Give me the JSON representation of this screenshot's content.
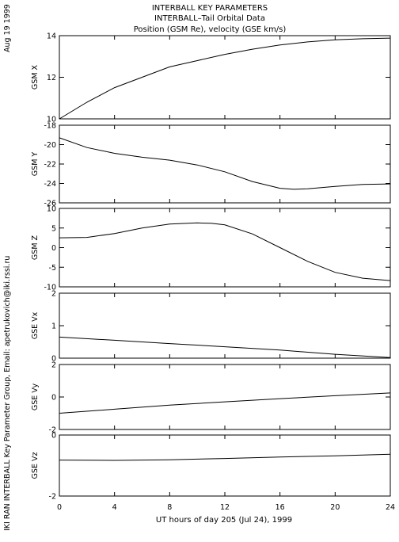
{
  "header": {
    "line1": "INTERBALL KEY PARAMETERS",
    "line2": "INTERBALL–Tail Orbital Data",
    "line3": "Position (GSM Re), velocity (GSE km/s)"
  },
  "side": {
    "date": "Aug 19 1999",
    "credit": "IKI RAN INTERBALL Key Parameter Group, Email: apetrukovich@iki.rssi.ru"
  },
  "chart_data": {
    "type": "line",
    "xlabel": "UT hours of day 205 (Jul 24), 1999",
    "xlim": [
      0,
      24
    ],
    "xticks": [
      0,
      4,
      8,
      12,
      16,
      20,
      24
    ],
    "panels": [
      {
        "ylabel": "GSM X",
        "ylim": [
          10,
          14
        ],
        "yticks": [
          10,
          12,
          14
        ],
        "x": [
          0,
          2,
          4,
          6,
          8,
          10,
          12,
          14,
          16,
          18,
          20,
          22,
          24
        ],
        "y": [
          10.0,
          10.8,
          11.5,
          12.0,
          12.5,
          12.8,
          13.1,
          13.35,
          13.55,
          13.7,
          13.8,
          13.85,
          13.88
        ]
      },
      {
        "ylabel": "GSM Y",
        "ylim": [
          -26,
          -18
        ],
        "yticks": [
          -26,
          -24,
          -22,
          -20,
          -18
        ],
        "x": [
          0,
          2,
          4,
          6,
          8,
          10,
          12,
          14,
          16,
          17,
          18,
          20,
          22,
          24
        ],
        "y": [
          -19.3,
          -20.3,
          -20.9,
          -21.3,
          -21.6,
          -22.1,
          -22.8,
          -23.8,
          -24.5,
          -24.6,
          -24.55,
          -24.3,
          -24.1,
          -24.05
        ]
      },
      {
        "ylabel": "GSM Z",
        "ylim": [
          -10,
          10
        ],
        "yticks": [
          -10,
          -5,
          0,
          5,
          10
        ],
        "x": [
          0,
          2,
          4,
          6,
          8,
          10,
          11,
          12,
          14,
          16,
          18,
          20,
          22,
          24
        ],
        "y": [
          2.5,
          2.6,
          3.6,
          5.0,
          6.0,
          6.3,
          6.2,
          5.8,
          3.5,
          0.0,
          -3.5,
          -6.3,
          -7.8,
          -8.4
        ]
      },
      {
        "ylabel": "GSE Vx",
        "ylim": [
          0,
          2
        ],
        "yticks": [
          0,
          1,
          2
        ],
        "x": [
          0,
          4,
          8,
          12,
          16,
          20,
          24
        ],
        "y": [
          0.65,
          0.55,
          0.45,
          0.35,
          0.25,
          0.12,
          0.02
        ]
      },
      {
        "ylabel": "GSE Vy",
        "ylim": [
          -2,
          2
        ],
        "yticks": [
          -2,
          0,
          2
        ],
        "x": [
          0,
          4,
          8,
          12,
          16,
          20,
          24
        ],
        "y": [
          -1.0,
          -0.75,
          -0.5,
          -0.3,
          -0.1,
          0.08,
          0.25
        ]
      },
      {
        "ylabel": "GSE Vz",
        "ylim": [
          -2,
          0
        ],
        "yticks": [
          -2,
          0
        ],
        "x": [
          0,
          4,
          8,
          12,
          16,
          20,
          24
        ],
        "y": [
          -0.82,
          -0.83,
          -0.81,
          -0.77,
          -0.72,
          -0.68,
          -0.63
        ]
      }
    ]
  }
}
